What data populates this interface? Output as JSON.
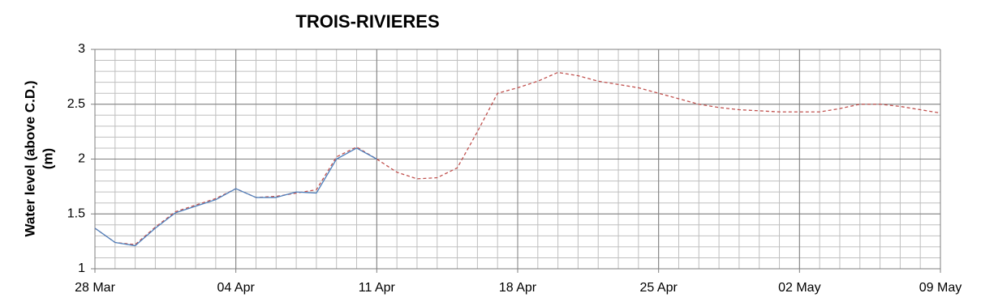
{
  "chart_data": {
    "type": "line",
    "title": "TROIS-RIVIERES",
    "ylabel": [
      "Water level (above C.D.)",
      "(m)"
    ],
    "x": [
      "28 Mar",
      null,
      null,
      null,
      null,
      null,
      null,
      "04 Apr",
      null,
      null,
      null,
      null,
      null,
      null,
      "11 Apr",
      null,
      null,
      null,
      null,
      null,
      null,
      "18 Apr",
      null,
      null,
      null,
      null,
      null,
      null,
      "25 Apr",
      null,
      null,
      null,
      null,
      null,
      null,
      "02 May",
      null,
      null,
      null,
      null,
      null,
      null,
      "09 May"
    ],
    "series": [
      {
        "color": "#c0504d",
        "dashed": true,
        "values": [
          1.37,
          1.24,
          1.22,
          1.38,
          1.52,
          1.58,
          1.64,
          1.73,
          1.65,
          1.66,
          1.69,
          1.72,
          2.02,
          2.11,
          2.0,
          1.88,
          1.82,
          1.83,
          1.92,
          2.25,
          2.6,
          2.65,
          2.71,
          2.79,
          2.76,
          2.71,
          2.68,
          2.65,
          2.6,
          2.55,
          2.5,
          2.47,
          2.45,
          2.44,
          2.43,
          2.43,
          2.43,
          2.46,
          2.5,
          2.5,
          2.48,
          2.45,
          2.42
        ]
      },
      {
        "color": "#4f81bd",
        "dashed": false,
        "values": [
          1.37,
          1.24,
          1.21,
          1.37,
          1.51,
          1.57,
          1.63,
          1.73,
          1.65,
          1.65,
          1.7,
          1.69,
          2.0,
          2.1,
          2.0,
          null,
          null,
          null,
          null,
          null,
          null,
          null,
          null,
          null,
          null,
          null,
          null,
          null,
          null,
          null,
          null,
          null,
          null,
          null,
          null,
          null,
          null,
          null,
          null,
          null,
          null,
          null,
          null
        ]
      }
    ],
    "ylim": [
      1,
      3
    ],
    "yticks": [
      1,
      1.5,
      2,
      2.5,
      3
    ],
    "grid": true
  }
}
